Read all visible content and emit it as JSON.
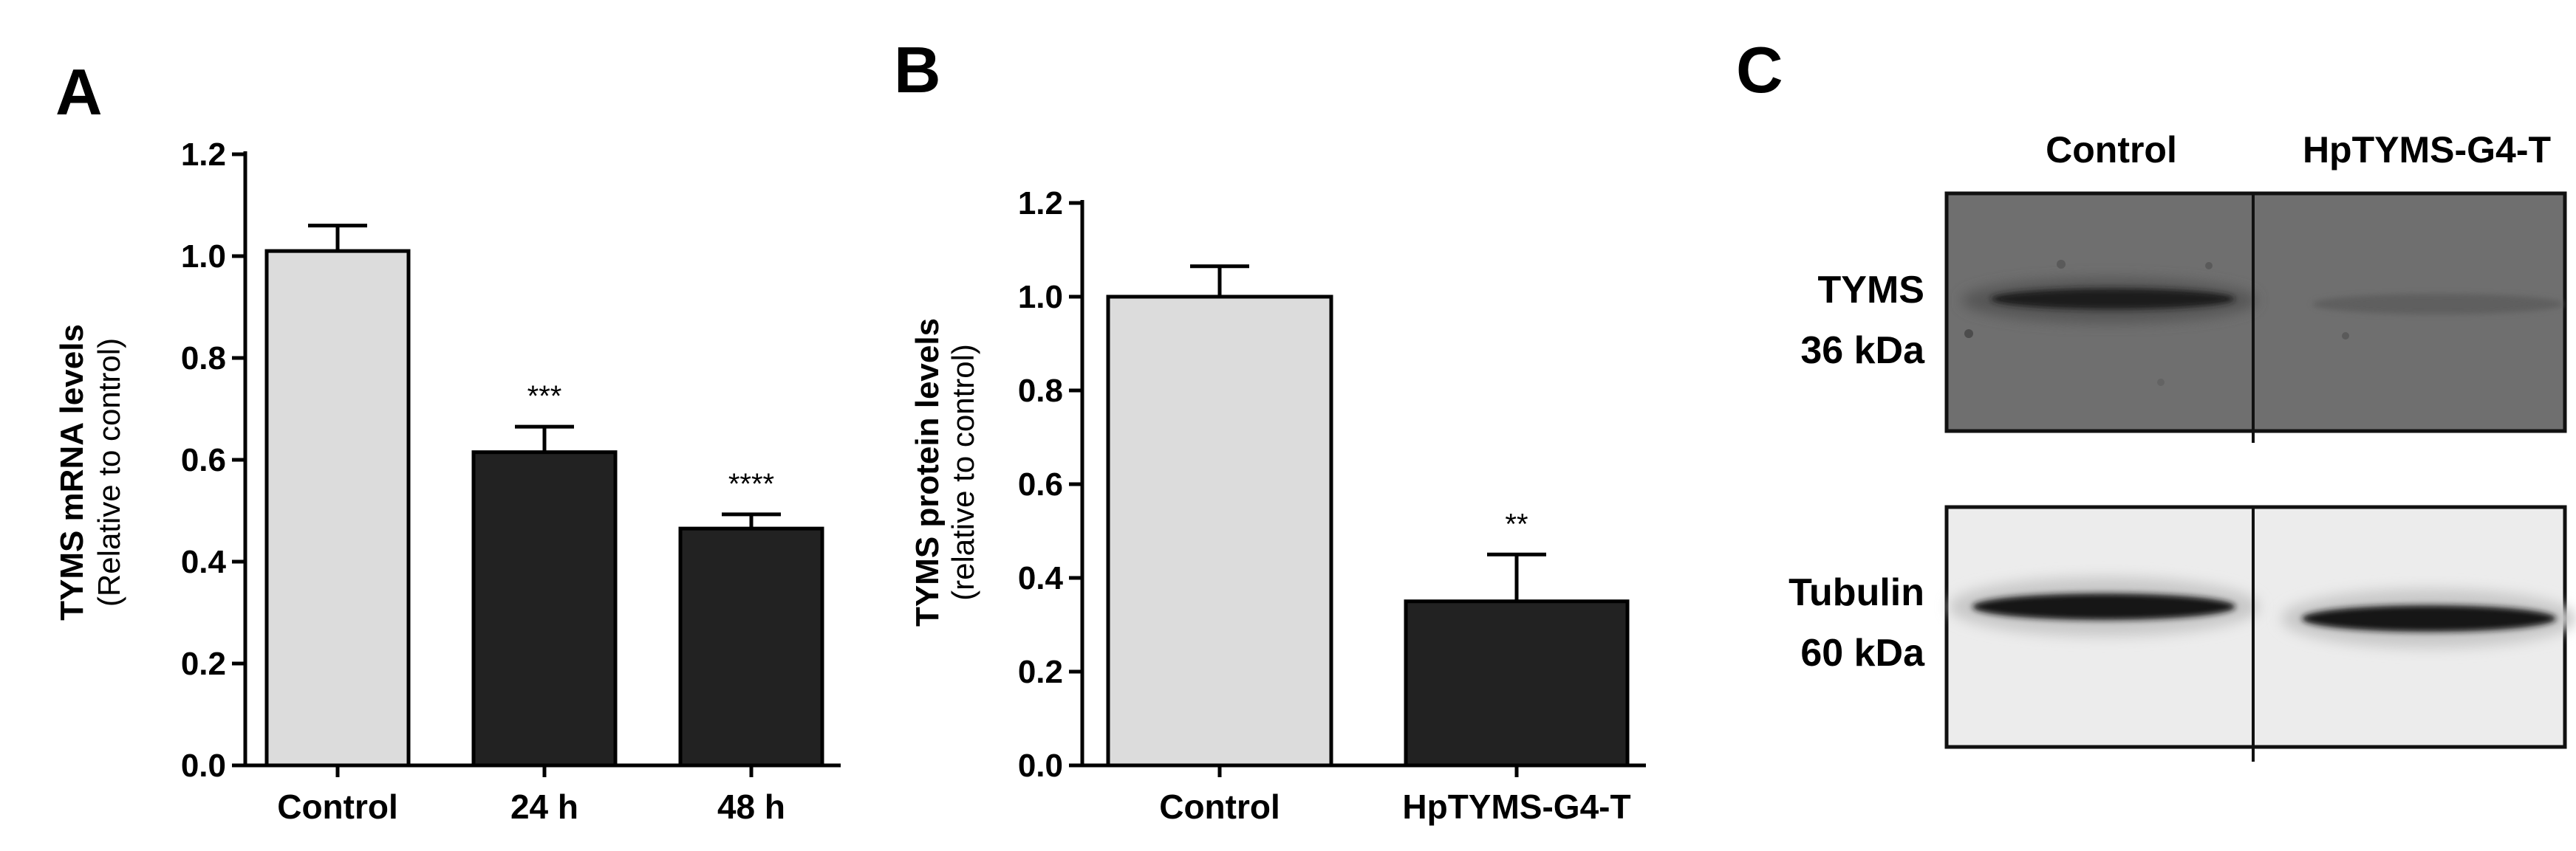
{
  "chart_data": [
    {
      "panel": "A",
      "type": "bar",
      "categories": [
        "Control",
        "24 h",
        "48 h"
      ],
      "values": [
        1.01,
        0.615,
        0.465
      ],
      "errors": [
        0.05,
        0.05,
        0.028
      ],
      "significance": [
        "",
        "***",
        "****"
      ],
      "bar_colors": [
        "#dcdcdc",
        "#222222",
        "#222222"
      ],
      "ylabel": "TYMS mRNA levels",
      "ylabel_sub": "(Relative to control)",
      "ylim": [
        0,
        1.2
      ],
      "yticks": [
        "0.0",
        "0.2",
        "0.4",
        "0.6",
        "0.8",
        "1.0",
        "1.2"
      ],
      "grid": false
    },
    {
      "panel": "B",
      "type": "bar",
      "categories": [
        "Control",
        "HpTYMS-G4-T"
      ],
      "values": [
        1.0,
        0.35
      ],
      "errors": [
        0.065,
        0.1
      ],
      "significance": [
        "",
        "**"
      ],
      "bar_colors": [
        "#dcdcdc",
        "#222222"
      ],
      "ylabel": "TYMS protein levels",
      "ylabel_sub": "(relative to control)",
      "ylim": [
        0,
        1.2
      ],
      "yticks": [
        "0.0",
        "0.2",
        "0.4",
        "0.6",
        "0.8",
        "1.0",
        "1.2"
      ],
      "grid": false
    }
  ],
  "blot": {
    "panel": "C",
    "columns": [
      "Control",
      "HpTYMS-G4-T"
    ],
    "rows": [
      {
        "name": "TYMS",
        "size": "36 kDa"
      },
      {
        "name": "Tubulin",
        "size": "60 kDa"
      }
    ]
  },
  "colors": {
    "control_bar": "#dcdcdc",
    "treated_bar": "#222222",
    "blot_top_bg": "#6e6e6e",
    "blot_bottom_bg": "#ececec"
  }
}
